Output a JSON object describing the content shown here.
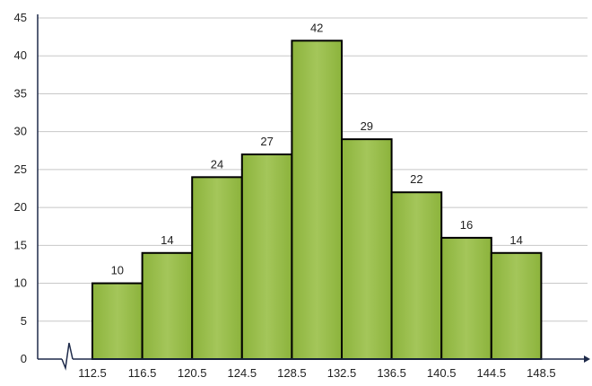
{
  "chart_data": {
    "type": "bar",
    "subtype": "histogram",
    "class_boundaries": [
      "112.5",
      "116.5",
      "120.5",
      "124.5",
      "128.5",
      "132.5",
      "136.5",
      "140.5",
      "144.5",
      "148.5"
    ],
    "values": [
      10,
      14,
      24,
      27,
      42,
      29,
      22,
      16,
      14
    ],
    "data_labels": [
      "10",
      "14",
      "24",
      "27",
      "42",
      "29",
      "22",
      "16",
      "14"
    ],
    "y_ticks": [
      "0",
      "5",
      "10",
      "15",
      "20",
      "25",
      "30",
      "35",
      "40",
      "45"
    ],
    "ylim": [
      0,
      45
    ],
    "title": "",
    "xlabel": "",
    "ylabel": "",
    "grid": "horizontal",
    "x_axis_break": true,
    "colors": {
      "bar_fill": "#8cb33c",
      "bar_fill_light": "#a4c65a",
      "bar_stroke": "#000000",
      "grid": "#c8c8c8",
      "axis": "#1e2a4a"
    }
  }
}
